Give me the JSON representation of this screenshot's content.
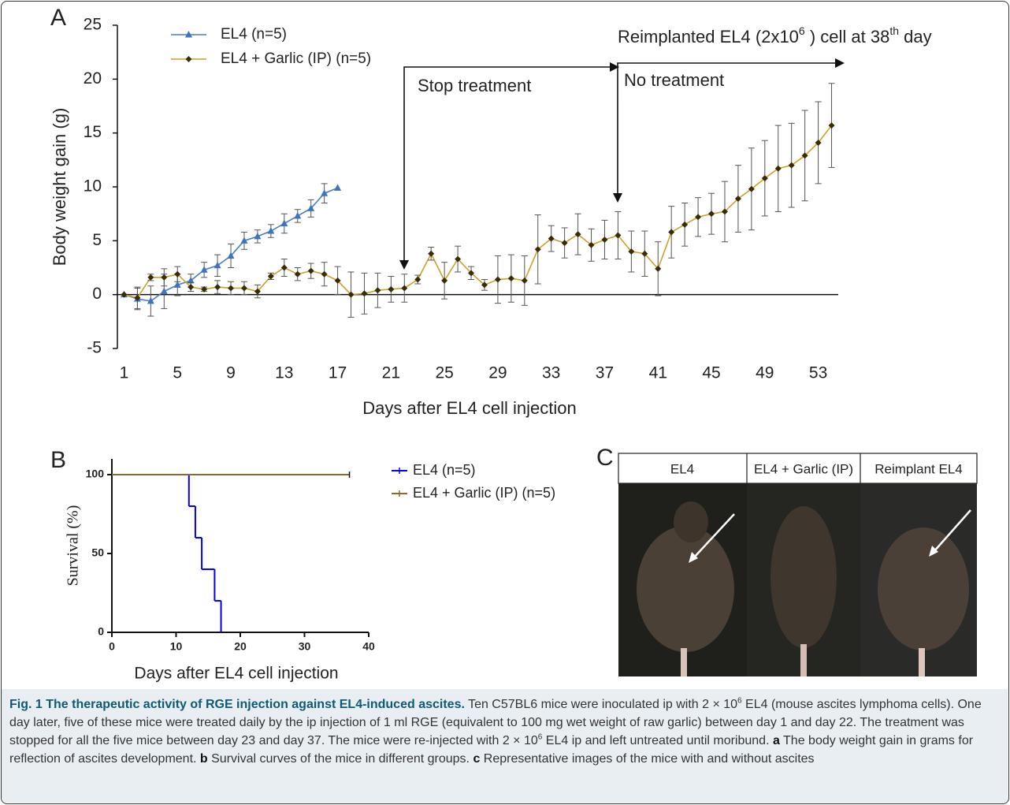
{
  "panels": [
    "A",
    "B",
    "C"
  ],
  "chart_data": [
    {
      "type": "line",
      "x_label": "Days after EL4 cell injection",
      "y_label": "Body weight gain (g)",
      "xlim": [
        0.5,
        54.5
      ],
      "xticks": [
        1,
        5,
        9,
        13,
        17,
        21,
        25,
        29,
        33,
        37,
        41,
        45,
        49,
        53
      ],
      "ylim": [
        -5,
        25
      ],
      "yticks": [
        -5,
        0,
        5,
        10,
        15,
        20,
        25
      ],
      "annotations": [
        "Stop treatment",
        "No treatment"
      ],
      "reimplant_note": [
        "Reimplanted EL4 (2x10",
        "6",
        " ) cell at 38",
        "th",
        " day"
      ],
      "series": [
        {
          "name": "EL4  (n=5)",
          "color": "#4a7fc1",
          "marker_color": "#3d73c0",
          "marker": "triangle",
          "x": [
            1,
            2,
            3,
            4,
            5,
            6,
            7,
            8,
            9,
            10,
            11,
            12,
            13,
            14,
            15,
            16,
            17
          ],
          "values": [
            0,
            -0.4,
            -0.6,
            0.3,
            0.9,
            1.3,
            2.3,
            2.7,
            3.6,
            5.0,
            5.4,
            5.9,
            6.6,
            7.3,
            8.0,
            9.4,
            9.9
          ],
          "errors": [
            0,
            1.0,
            1.4,
            1.6,
            1.0,
            0.6,
            0.7,
            1.0,
            1.1,
            0.8,
            0.6,
            0.6,
            0.9,
            0.6,
            0.8,
            0.9,
            0
          ]
        },
        {
          "name": "EL4 + Garlic (IP) (n=5)",
          "color": "#c9a227",
          "marker_color": "#3a2a05",
          "marker": "diamond",
          "x": [
            1,
            2,
            3,
            4,
            5,
            6,
            7,
            8,
            9,
            10,
            11,
            12,
            13,
            14,
            15,
            16,
            17,
            18,
            19,
            20,
            21,
            22,
            23,
            24,
            25,
            26,
            27,
            28,
            29,
            30,
            31,
            32,
            33,
            34,
            35,
            36,
            37,
            38,
            39,
            40,
            41,
            42,
            43,
            44,
            45,
            46,
            47,
            48,
            49,
            50,
            51,
            52,
            53,
            54
          ],
          "values": [
            0,
            -0.3,
            1.6,
            1.6,
            1.9,
            0.7,
            0.5,
            0.7,
            0.6,
            0.6,
            0.3,
            1.7,
            2.5,
            1.9,
            2.2,
            1.9,
            1.3,
            0,
            0.1,
            0.4,
            0.5,
            0.6,
            1.4,
            3.8,
            1.3,
            3.3,
            2.0,
            0.9,
            1.4,
            1.5,
            1.3,
            4.2,
            5.2,
            4.8,
            5.6,
            4.6,
            5.1,
            5.5,
            4.0,
            3.8,
            2.4,
            5.8,
            6.5,
            7.2,
            7.5,
            7.7,
            8.9,
            9.8,
            10.8,
            11.7,
            12.0,
            12.9,
            14.1,
            15.7
          ],
          "errors": [
            0,
            1.0,
            0.3,
            0.8,
            0.7,
            0.4,
            0.2,
            0.6,
            0.6,
            0.6,
            0.6,
            0.3,
            0.8,
            0.6,
            0.7,
            1.1,
            1.3,
            2.1,
            1.9,
            1.6,
            1.2,
            1.3,
            0.4,
            0.6,
            1.7,
            1.2,
            0.6,
            0.5,
            2.2,
            2.2,
            2.3,
            3.2,
            1.2,
            1.4,
            1.9,
            1.5,
            1.8,
            2.2,
            1.9,
            2.1,
            2.5,
            2.4,
            2.0,
            1.8,
            1.9,
            2.8,
            3.1,
            3.8,
            3.5,
            4.0,
            3.9,
            4.2,
            3.8,
            3.9
          ]
        }
      ]
    },
    {
      "type": "step",
      "x_label": "Days after EL4 cell injection",
      "y_label": "Survival (%)",
      "xlim": [
        0,
        40
      ],
      "xticks": [
        0,
        10,
        20,
        30,
        40
      ],
      "ylim": [
        0,
        110
      ],
      "yticks": [
        0,
        50,
        100
      ],
      "series": [
        {
          "name": "EL4 (n=5)",
          "color": "#0000ff",
          "x": [
            0,
            12,
            13,
            14,
            16,
            17
          ],
          "values": [
            100,
            80,
            60,
            40,
            20,
            0
          ]
        },
        {
          "name": "EL4 + Garlic (IP) (n=5)",
          "color": "#8b6a2b",
          "x": [
            0,
            37
          ],
          "values": [
            100,
            100
          ]
        }
      ]
    }
  ],
  "panel_c": {
    "headers": [
      "EL4",
      "EL4 + Garlic (IP)",
      "Reimplant  EL4"
    ]
  },
  "caption": {
    "title": "Fig. 1 The therapeutic activity of RGE injection against EL4-induced ascites.",
    "parts": [
      " Ten C57BL6 mice were inoculated ip with 2 × 10",
      "6",
      " EL4 (mouse ascites lymphoma cells). One day later, five of these mice were treated daily by the ip injection of 1 ml RGE (equivalent to 100 mg wet weight of raw garlic) between day 1 and day 22. The treatment was stopped for all the five mice between day 23 and day 37. The mice were re-injected with 2 × 10",
      "6",
      " EL4 ip and left untreated until moribund. ",
      "a",
      " The body weight gain in grams for reflection of ascites development. ",
      "b",
      " Survival curves of the mice in different groups. ",
      "c",
      " Representative images of the mice with and without ascites"
    ]
  }
}
